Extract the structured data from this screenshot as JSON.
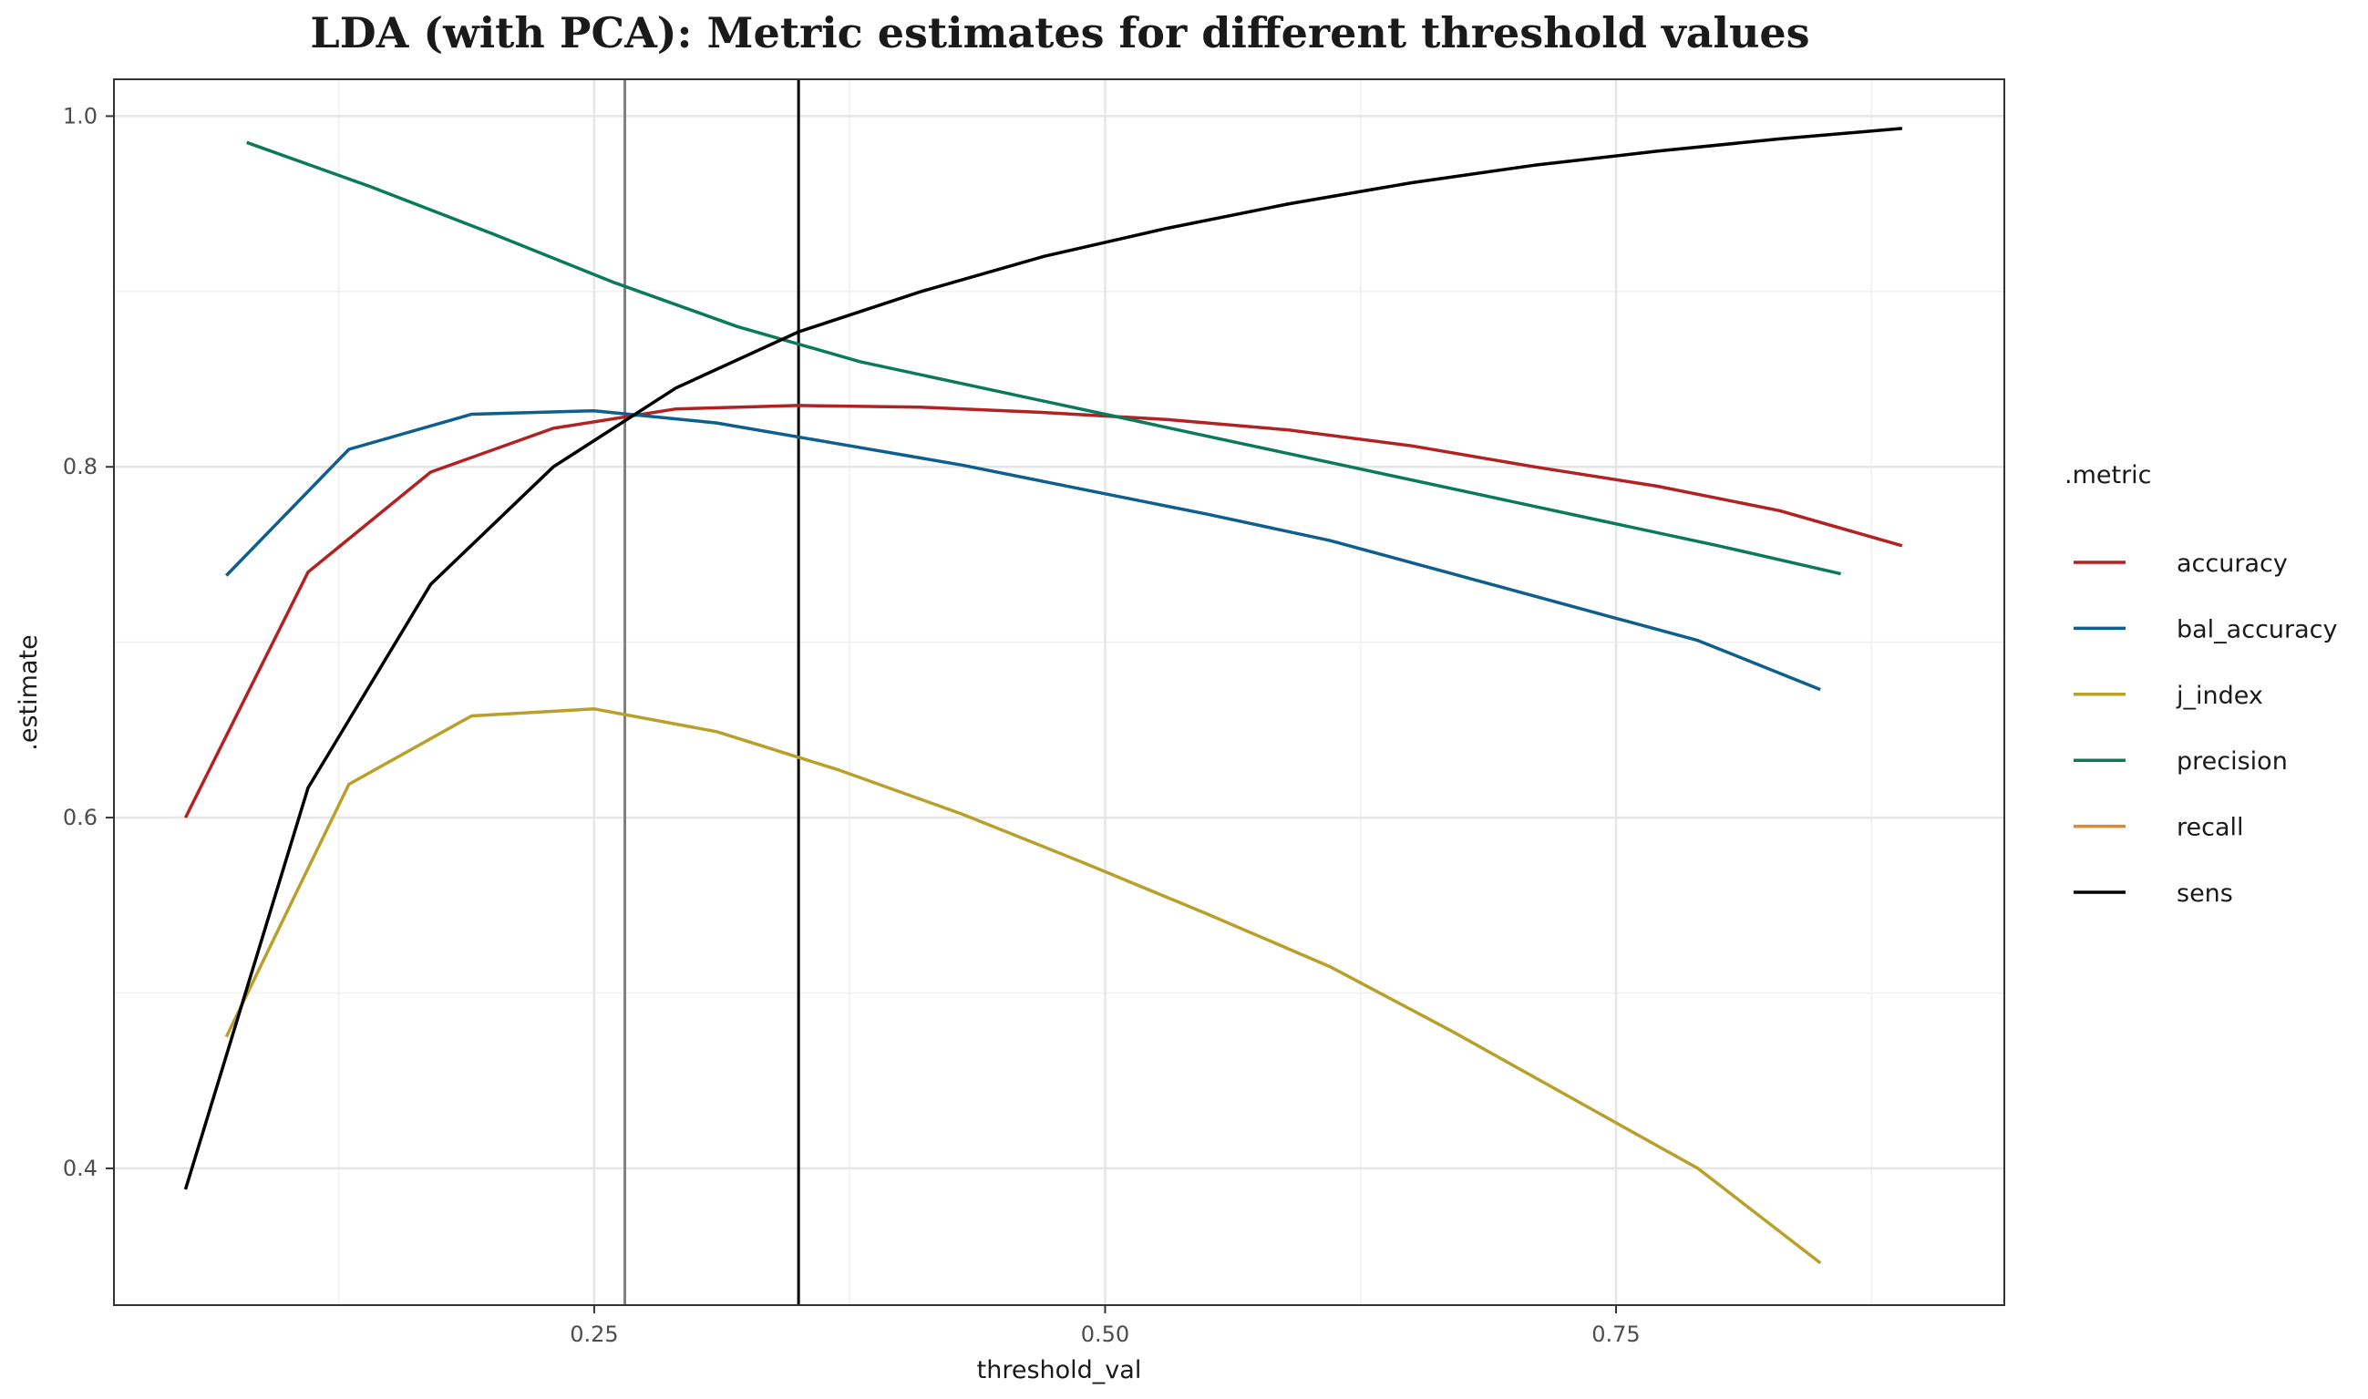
{
  "chart_data": {
    "type": "line",
    "title": "LDA (with PCA): Metric estimates for different threshold values",
    "xlabel": "threshold_val",
    "ylabel": ".estimate",
    "xlim": [
      0.015,
      0.94
    ],
    "ylim": [
      0.322,
      1.021
    ],
    "x_ticks": [
      0.25,
      0.5,
      0.75
    ],
    "x_tick_labels": [
      "0.25",
      "0.50",
      "0.75"
    ],
    "y_ticks": [
      0.4,
      0.6,
      0.8,
      1.0
    ],
    "y_tick_labels": [
      "0.4",
      "0.6",
      "0.8",
      "1.0"
    ],
    "grid": true,
    "legend_title": ".metric",
    "legend_position": "right",
    "vlines": [
      {
        "x": 0.265,
        "color": "#808080"
      },
      {
        "x": 0.35,
        "color": "#000000"
      }
    ],
    "series": [
      {
        "name": "accuracy",
        "color": "#B22222",
        "points": [
          [
            0.05,
            0.6
          ],
          [
            0.11,
            0.74
          ],
          [
            0.17,
            0.797
          ],
          [
            0.23,
            0.822
          ],
          [
            0.29,
            0.833
          ],
          [
            0.35,
            0.835
          ],
          [
            0.41,
            0.834
          ],
          [
            0.47,
            0.831
          ],
          [
            0.53,
            0.827
          ],
          [
            0.59,
            0.821
          ],
          [
            0.65,
            0.812
          ],
          [
            0.71,
            0.8
          ],
          [
            0.77,
            0.789
          ],
          [
            0.83,
            0.775
          ],
          [
            0.89,
            0.755
          ]
        ]
      },
      {
        "name": "bal_accuracy",
        "color": "#0E5E8E",
        "points": [
          [
            0.07,
            0.738
          ],
          [
            0.13,
            0.81
          ],
          [
            0.19,
            0.83
          ],
          [
            0.25,
            0.832
          ],
          [
            0.31,
            0.825
          ],
          [
            0.37,
            0.813
          ],
          [
            0.43,
            0.801
          ],
          [
            0.49,
            0.787
          ],
          [
            0.55,
            0.773
          ],
          [
            0.61,
            0.758
          ],
          [
            0.67,
            0.739
          ],
          [
            0.73,
            0.72
          ],
          [
            0.79,
            0.701
          ],
          [
            0.85,
            0.673
          ]
        ]
      },
      {
        "name": "j_index",
        "color": "#B8A02A",
        "points": [
          [
            0.07,
            0.475
          ],
          [
            0.13,
            0.619
          ],
          [
            0.19,
            0.658
          ],
          [
            0.25,
            0.662
          ],
          [
            0.31,
            0.649
          ],
          [
            0.37,
            0.627
          ],
          [
            0.43,
            0.602
          ],
          [
            0.49,
            0.574
          ],
          [
            0.55,
            0.545
          ],
          [
            0.61,
            0.515
          ],
          [
            0.67,
            0.478
          ],
          [
            0.73,
            0.439
          ],
          [
            0.79,
            0.4
          ],
          [
            0.85,
            0.346
          ]
        ]
      },
      {
        "name": "precision",
        "color": "#0B7A5A",
        "points": [
          [
            0.08,
            0.985
          ],
          [
            0.14,
            0.96
          ],
          [
            0.2,
            0.933
          ],
          [
            0.26,
            0.905
          ],
          [
            0.32,
            0.88
          ],
          [
            0.38,
            0.86
          ],
          [
            0.44,
            0.845
          ],
          [
            0.5,
            0.83
          ],
          [
            0.56,
            0.815
          ],
          [
            0.62,
            0.8
          ],
          [
            0.68,
            0.785
          ],
          [
            0.74,
            0.77
          ],
          [
            0.8,
            0.755
          ],
          [
            0.86,
            0.739
          ]
        ]
      },
      {
        "name": "recall",
        "color": "#E3872D",
        "points": []
      },
      {
        "name": "sens",
        "color": "#000000",
        "points": [
          [
            0.05,
            0.388
          ],
          [
            0.11,
            0.617
          ],
          [
            0.17,
            0.733
          ],
          [
            0.23,
            0.8
          ],
          [
            0.29,
            0.845
          ],
          [
            0.35,
            0.877
          ],
          [
            0.41,
            0.9
          ],
          [
            0.47,
            0.92
          ],
          [
            0.53,
            0.936
          ],
          [
            0.59,
            0.95
          ],
          [
            0.65,
            0.962
          ],
          [
            0.71,
            0.972
          ],
          [
            0.77,
            0.98
          ],
          [
            0.83,
            0.987
          ],
          [
            0.89,
            0.993
          ]
        ]
      }
    ]
  }
}
